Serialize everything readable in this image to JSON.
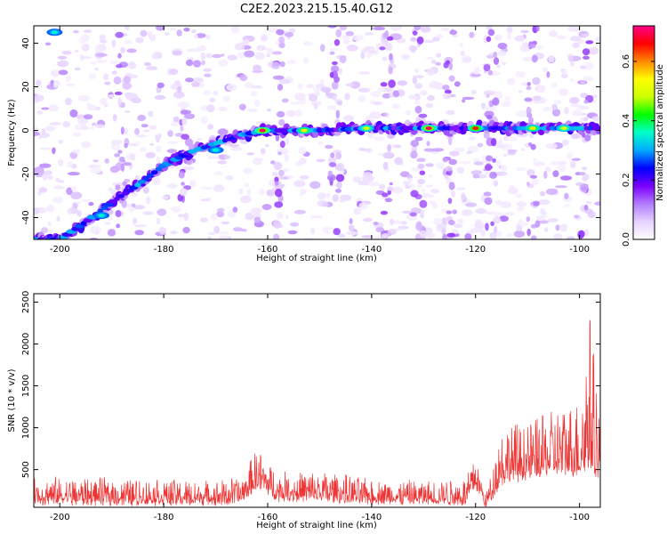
{
  "chart_data": [
    {
      "type": "heatmap",
      "title": "C2E2.2023.215.15.40.G12",
      "xlabel": "Height of straight line (km)",
      "ylabel": "Frequency (Hz)",
      "xlim": [
        -205,
        -96
      ],
      "ylim": [
        -50,
        48
      ],
      "xticks": [
        "-200",
        "-180",
        "-160",
        "-140",
        "-120",
        "-100"
      ],
      "yticks": [
        "-40",
        "-20",
        "0",
        "20",
        "40"
      ],
      "colorbar": {
        "label": "Normalized spectral amplitude",
        "range": [
          0,
          0.72
        ],
        "ticks": [
          "0.0",
          "0.2",
          "0.4",
          "0.6"
        ],
        "colormap": [
          "#ffffff",
          "#e6d2ff",
          "#b27bff",
          "#7a00ff",
          "#0000ff",
          "#00aaff",
          "#00ffcc",
          "#00ff00",
          "#ccff00",
          "#ffff00",
          "#ff8800",
          "#ff0000",
          "#ff0088"
        ]
      },
      "ridge": {
        "description_points": [
          {
            "x": -200,
            "y": -50
          },
          {
            "x": -195,
            "y": -42
          },
          {
            "x": -190,
            "y": -33
          },
          {
            "x": -185,
            "y": -25
          },
          {
            "x": -180,
            "y": -16
          },
          {
            "x": -175,
            "y": -10
          },
          {
            "x": -170,
            "y": -6
          },
          {
            "x": -165,
            "y": -2
          },
          {
            "x": -160,
            "y": 0
          },
          {
            "x": -150,
            "y": 0
          },
          {
            "x": -140,
            "y": 1
          },
          {
            "x": -130,
            "y": 1
          },
          {
            "x": -120,
            "y": 1
          },
          {
            "x": -110,
            "y": 1
          },
          {
            "x": -100,
            "y": 1
          },
          {
            "x": -96,
            "y": 1
          }
        ],
        "peaks": [
          {
            "x": -161,
            "y": 0,
            "v": 0.7
          },
          {
            "x": -129,
            "y": 1,
            "v": 0.7
          },
          {
            "x": -120,
            "y": 1,
            "v": 0.65
          },
          {
            "x": -153,
            "y": 0,
            "v": 0.55
          },
          {
            "x": -141,
            "y": 1,
            "v": 0.5
          },
          {
            "x": -109,
            "y": 1,
            "v": 0.55
          },
          {
            "x": -103,
            "y": 1,
            "v": 0.5
          },
          {
            "x": -170,
            "y": -9,
            "v": 0.35
          },
          {
            "x": -192,
            "y": -39,
            "v": 0.35
          }
        ],
        "corner_blob": {
          "x": -201,
          "y": 45,
          "v": 0.35
        }
      }
    },
    {
      "type": "line",
      "xlabel": "Height of straight line (km)",
      "ylabel": "SNR (10 * v/v)",
      "xlim": [
        -205,
        -96
      ],
      "ylim": [
        50,
        2600
      ],
      "xticks": [
        "-200",
        "-180",
        "-160",
        "-140",
        "-120",
        "-100"
      ],
      "yticks": [
        "500",
        "1000",
        "1500",
        "2000",
        "2500"
      ],
      "color": "#ee3333",
      "envelope": [
        {
          "x": -205,
          "base": 250,
          "amp": 300
        },
        {
          "x": -170,
          "base": 250,
          "amp": 250
        },
        {
          "x": -165,
          "base": 260,
          "amp": 300
        },
        {
          "x": -162,
          "base": 450,
          "amp": 450
        },
        {
          "x": -158,
          "base": 300,
          "amp": 300
        },
        {
          "x": -150,
          "base": 280,
          "amp": 350
        },
        {
          "x": -140,
          "base": 260,
          "amp": 250
        },
        {
          "x": -130,
          "base": 250,
          "amp": 250
        },
        {
          "x": -122,
          "base": 250,
          "amp": 300
        },
        {
          "x": -120,
          "base": 450,
          "amp": 380
        },
        {
          "x": -118,
          "base": 200,
          "amp": 150
        },
        {
          "x": -115,
          "base": 500,
          "amp": 700
        },
        {
          "x": -110,
          "base": 550,
          "amp": 650
        },
        {
          "x": -104,
          "base": 600,
          "amp": 800
        },
        {
          "x": -100,
          "base": 600,
          "amp": 900
        },
        {
          "x": -98,
          "base": 700,
          "amp": 1900
        },
        {
          "x": -96,
          "base": 500,
          "amp": 900
        }
      ]
    }
  ]
}
